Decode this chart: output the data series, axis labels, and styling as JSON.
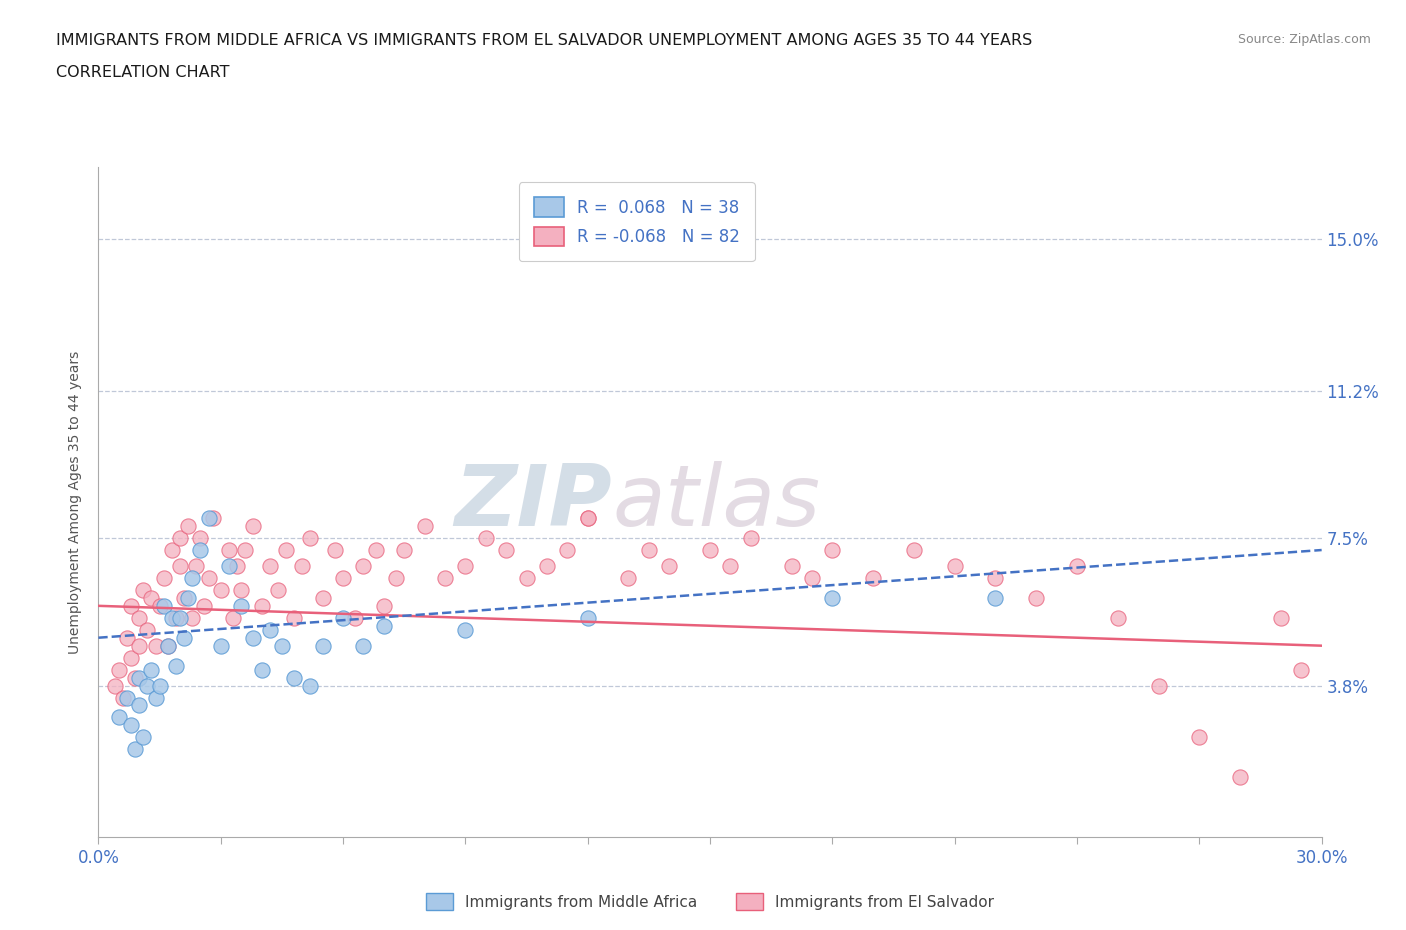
{
  "title_line1": "IMMIGRANTS FROM MIDDLE AFRICA VS IMMIGRANTS FROM EL SALVADOR UNEMPLOYMENT AMONG AGES 35 TO 44 YEARS",
  "title_line2": "CORRELATION CHART",
  "source_text": "Source: ZipAtlas.com",
  "ylabel": "Unemployment Among Ages 35 to 44 years",
  "xlim": [
    0.0,
    0.3
  ],
  "ylim": [
    0.0,
    0.168
  ],
  "xticks": [
    0.0,
    0.03,
    0.06,
    0.09,
    0.12,
    0.15,
    0.18,
    0.21,
    0.24,
    0.27,
    0.3
  ],
  "ytick_values": [
    0.038,
    0.075,
    0.112,
    0.15
  ],
  "ytick_labels": [
    "3.8%",
    "7.5%",
    "11.2%",
    "15.0%"
  ],
  "grid_color": "#c0c8d8",
  "background_color": "#ffffff",
  "series1": {
    "name": "Immigrants from Middle Africa",
    "color": "#a8c8e8",
    "edge_color": "#5b9bd5",
    "trend_color": "#4472c4",
    "trend_style": "--",
    "x": [
      0.005,
      0.007,
      0.008,
      0.009,
      0.01,
      0.01,
      0.011,
      0.012,
      0.013,
      0.014,
      0.015,
      0.016,
      0.017,
      0.018,
      0.019,
      0.02,
      0.021,
      0.022,
      0.023,
      0.025,
      0.027,
      0.03,
      0.032,
      0.035,
      0.038,
      0.04,
      0.042,
      0.045,
      0.048,
      0.052,
      0.055,
      0.06,
      0.065,
      0.07,
      0.09,
      0.12,
      0.18,
      0.22
    ],
    "y": [
      0.03,
      0.035,
      0.028,
      0.022,
      0.04,
      0.033,
      0.025,
      0.038,
      0.042,
      0.035,
      0.038,
      0.058,
      0.048,
      0.055,
      0.043,
      0.055,
      0.05,
      0.06,
      0.065,
      0.072,
      0.08,
      0.048,
      0.068,
      0.058,
      0.05,
      0.042,
      0.052,
      0.048,
      0.04,
      0.038,
      0.048,
      0.055,
      0.048,
      0.053,
      0.052,
      0.055,
      0.06,
      0.06
    ]
  },
  "series2": {
    "name": "Immigrants from El Salvador",
    "color": "#f4b0c0",
    "edge_color": "#e8607a",
    "trend_color": "#e8607a",
    "trend_style": "-",
    "x": [
      0.004,
      0.005,
      0.006,
      0.007,
      0.008,
      0.008,
      0.009,
      0.01,
      0.01,
      0.011,
      0.012,
      0.013,
      0.014,
      0.015,
      0.016,
      0.017,
      0.018,
      0.019,
      0.02,
      0.02,
      0.021,
      0.022,
      0.023,
      0.024,
      0.025,
      0.026,
      0.027,
      0.028,
      0.03,
      0.032,
      0.033,
      0.034,
      0.035,
      0.036,
      0.038,
      0.04,
      0.042,
      0.044,
      0.046,
      0.048,
      0.05,
      0.052,
      0.055,
      0.058,
      0.06,
      0.063,
      0.065,
      0.068,
      0.07,
      0.073,
      0.075,
      0.08,
      0.085,
      0.09,
      0.095,
      0.1,
      0.105,
      0.11,
      0.115,
      0.12,
      0.13,
      0.14,
      0.15,
      0.16,
      0.17,
      0.18,
      0.19,
      0.2,
      0.21,
      0.22,
      0.23,
      0.24,
      0.25,
      0.26,
      0.27,
      0.28,
      0.12,
      0.135,
      0.155,
      0.175,
      0.29,
      0.295
    ],
    "y": [
      0.038,
      0.042,
      0.035,
      0.05,
      0.045,
      0.058,
      0.04,
      0.055,
      0.048,
      0.062,
      0.052,
      0.06,
      0.048,
      0.058,
      0.065,
      0.048,
      0.072,
      0.055,
      0.068,
      0.075,
      0.06,
      0.078,
      0.055,
      0.068,
      0.075,
      0.058,
      0.065,
      0.08,
      0.062,
      0.072,
      0.055,
      0.068,
      0.062,
      0.072,
      0.078,
      0.058,
      0.068,
      0.062,
      0.072,
      0.055,
      0.068,
      0.075,
      0.06,
      0.072,
      0.065,
      0.055,
      0.068,
      0.072,
      0.058,
      0.065,
      0.072,
      0.078,
      0.065,
      0.068,
      0.075,
      0.072,
      0.065,
      0.068,
      0.072,
      0.08,
      0.065,
      0.068,
      0.072,
      0.075,
      0.068,
      0.072,
      0.065,
      0.072,
      0.068,
      0.065,
      0.06,
      0.068,
      0.055,
      0.038,
      0.025,
      0.015,
      0.08,
      0.072,
      0.068,
      0.065,
      0.055,
      0.042
    ]
  },
  "legend_color": "#4472c4",
  "watermark": "ZIPAtlas",
  "watermark_color": "#d0d8e8"
}
